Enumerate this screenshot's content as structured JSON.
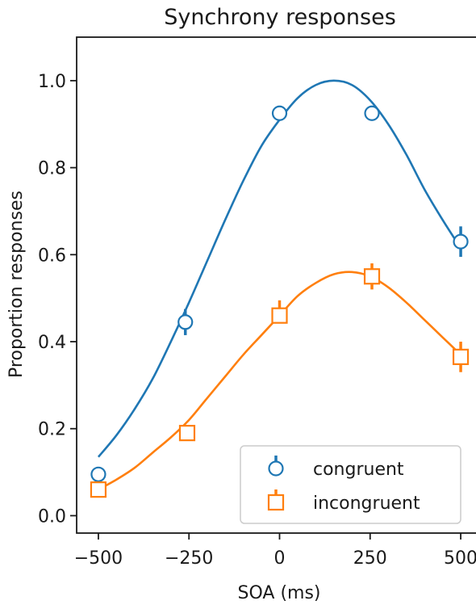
{
  "chart_data": {
    "type": "line",
    "title": "Synchrony responses",
    "xlabel": "SOA (ms)",
    "ylabel": "Proportion  responses",
    "xlim": [
      -560,
      560
    ],
    "ylim": [
      -0.04,
      1.1
    ],
    "x_ticks": [
      -500,
      -250,
      0,
      250,
      500
    ],
    "x_tick_labels": [
      "−500",
      "−250",
      "0",
      "250",
      "500"
    ],
    "y_ticks": [
      0.0,
      0.2,
      0.4,
      0.6,
      0.8,
      1.0
    ],
    "y_tick_labels": [
      "0.0",
      "0.2",
      "0.4",
      "0.6",
      "0.8",
      "1.0"
    ],
    "grid": false,
    "legend_position": "lower-right",
    "series": [
      {
        "name": "congruent",
        "color": "#1f77b4",
        "marker": "circle",
        "x": [
          -500,
          -260,
          0,
          255,
          500
        ],
        "y": [
          0.095,
          0.445,
          0.925,
          0.925,
          0.63
        ],
        "err_up": [
          0.0,
          0.03,
          0.0,
          0.0,
          0.035
        ],
        "err_down": [
          0.0,
          0.03,
          0.0,
          0.0,
          0.035
        ],
        "fit": {
          "x": [
            -500,
            -450,
            -400,
            -350,
            -300,
            -250,
            -200,
            -150,
            -100,
            -50,
            0,
            50,
            100,
            150,
            200,
            250,
            300,
            350,
            400,
            450,
            500
          ],
          "y": [
            0.135,
            0.185,
            0.245,
            0.315,
            0.4,
            0.49,
            0.585,
            0.68,
            0.77,
            0.85,
            0.91,
            0.96,
            0.99,
            1.0,
            0.99,
            0.955,
            0.9,
            0.83,
            0.75,
            0.68,
            0.615
          ]
        }
      },
      {
        "name": "incongruent",
        "color": "#ff7f0e",
        "marker": "square",
        "x": [
          -500,
          -255,
          0,
          255,
          500
        ],
        "y": [
          0.06,
          0.19,
          0.46,
          0.55,
          0.365
        ],
        "err_up": [
          0.0,
          0.0,
          0.035,
          0.03,
          0.035
        ],
        "err_down": [
          0.0,
          0.0,
          0.0,
          0.03,
          0.035
        ],
        "fit": {
          "x": [
            -500,
            -450,
            -400,
            -350,
            -300,
            -250,
            -200,
            -150,
            -100,
            -50,
            0,
            50,
            100,
            150,
            200,
            250,
            300,
            350,
            400,
            450,
            500
          ],
          "y": [
            0.06,
            0.083,
            0.11,
            0.145,
            0.18,
            0.22,
            0.27,
            0.32,
            0.37,
            0.415,
            0.46,
            0.505,
            0.535,
            0.555,
            0.56,
            0.55,
            0.525,
            0.49,
            0.45,
            0.41,
            0.37
          ]
        }
      }
    ]
  }
}
